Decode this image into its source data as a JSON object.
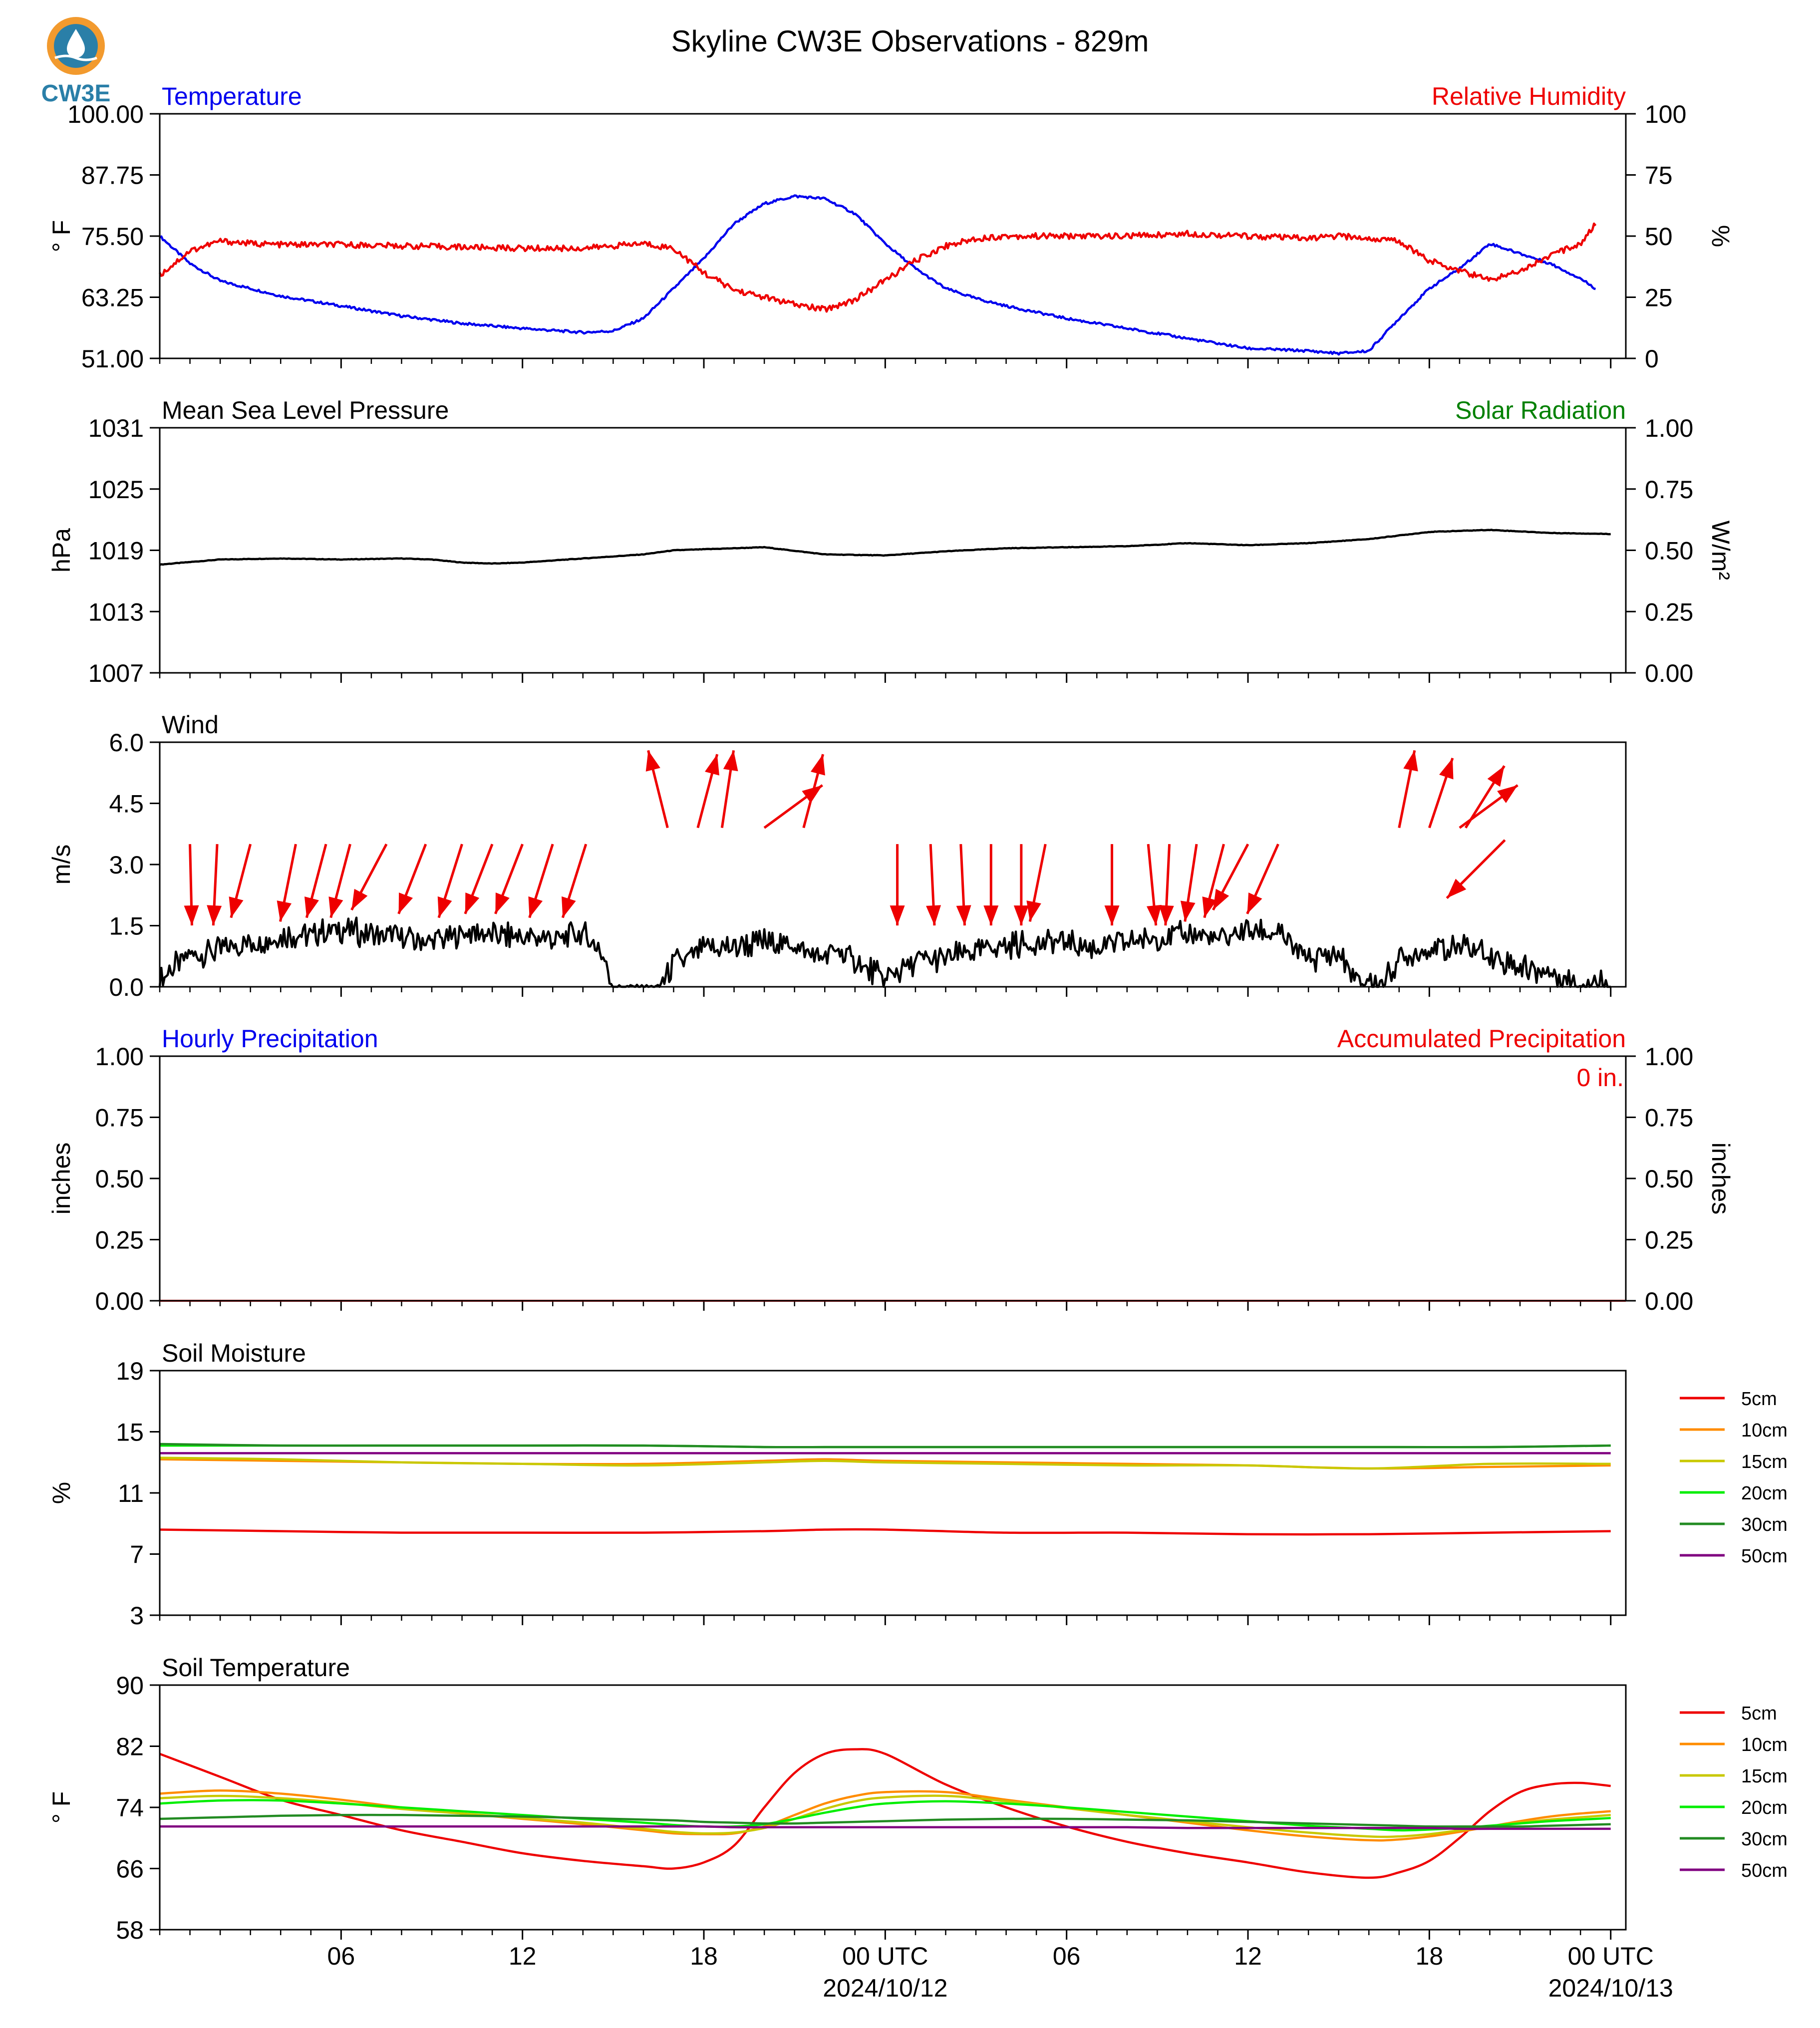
{
  "title": "Skyline CW3E Observations - 829m",
  "logo": {
    "text": "CW3E",
    "icon": "cw3e-logo-icon",
    "colors": [
      "#f29a2e",
      "#2a7fa8"
    ]
  },
  "time_axis": {
    "tick_labels": [
      "06",
      "12",
      "18",
      "00 UTC",
      "06",
      "12",
      "18",
      "00 UTC"
    ],
    "date_labels": [
      "2024/10/12",
      "2024/10/13"
    ]
  },
  "chart_data": [
    {
      "type": "line",
      "id": "temp_rh",
      "title_left": "Temperature",
      "title_right": "Relative Humidity",
      "title_left_color": "#0000ee",
      "title_right_color": "#ee0000",
      "ylabel_left": "° F",
      "ylabel_right": "%",
      "ylim_left": [
        51,
        100
      ],
      "ylim_right": [
        0,
        100
      ],
      "yticks_left": [
        "51.00",
        "63.25",
        "75.50",
        "87.75",
        "100.00"
      ],
      "yticks_right": [
        "0",
        "25",
        "50",
        "75",
        "100"
      ],
      "x_hours": [
        0,
        1,
        2,
        3,
        4,
        5,
        6,
        8,
        10,
        12,
        14,
        15,
        16,
        17,
        18,
        19,
        20,
        21,
        22,
        23,
        24,
        25,
        26,
        27,
        28,
        30,
        32,
        34,
        36,
        38,
        39,
        40,
        41,
        42,
        43,
        44,
        45,
        46,
        47,
        47.5
      ],
      "series": [
        {
          "name": "Temperature",
          "color": "#0000ee",
          "axis": "left",
          "values": [
            75.5,
            70,
            66.5,
            65,
            63.5,
            62.5,
            61.5,
            59.5,
            58,
            57,
            56.2,
            56.5,
            59,
            65,
            71,
            78,
            82,
            83.5,
            83,
            80,
            74,
            69,
            65,
            63,
            61.5,
            59,
            57,
            55,
            53,
            52.5,
            52,
            52.5,
            59,
            65,
            69,
            74,
            72,
            70,
            67,
            65
          ]
        },
        {
          "name": "Relative Humidity",
          "color": "#ee0000",
          "axis": "right",
          "values": [
            34,
            44,
            48,
            47,
            46.5,
            46.5,
            46.5,
            46,
            45.5,
            45,
            45,
            46,
            47,
            45,
            35,
            28,
            25,
            22,
            20,
            24,
            32,
            40,
            46,
            49,
            50,
            50,
            50,
            51,
            50,
            49,
            50,
            49,
            48,
            40,
            36,
            32,
            36,
            42,
            47,
            55
          ]
        }
      ]
    },
    {
      "type": "line",
      "id": "pressure",
      "title_left": "Mean Sea Level Pressure",
      "title_right": "Solar Radiation",
      "title_left_color": "#000000",
      "title_right_color": "#008000",
      "ylabel_left": "hPa",
      "ylabel_right": "W/m²",
      "ylim_left": [
        1007,
        1031
      ],
      "ylim_right": [
        0,
        1
      ],
      "yticks_left": [
        "1007",
        "1013",
        "1019",
        "1025",
        "1031"
      ],
      "yticks_right": [
        "0.00",
        "0.25",
        "0.50",
        "0.75",
        "1.00"
      ],
      "x_hours": [
        0,
        2,
        4,
        6,
        8,
        9,
        10,
        11,
        12,
        14,
        16,
        17,
        18,
        20,
        22,
        24,
        26,
        28,
        30,
        32,
        34,
        36,
        38,
        40,
        42,
        44,
        46,
        48
      ],
      "series": [
        {
          "name": "Mean Sea Level Pressure",
          "color": "#000000",
          "axis": "left",
          "values": [
            1017.6,
            1018.1,
            1018.2,
            1018.1,
            1018.2,
            1018.1,
            1017.8,
            1017.7,
            1017.8,
            1018.2,
            1018.6,
            1019.0,
            1019.1,
            1019.3,
            1018.6,
            1018.5,
            1018.9,
            1019.2,
            1019.3,
            1019.4,
            1019.7,
            1019.5,
            1019.7,
            1020.1,
            1020.8,
            1021.0,
            1020.7,
            1020.6
          ]
        }
      ]
    },
    {
      "type": "line",
      "id": "wind",
      "title_left": "Wind",
      "ylabel_left": "m/s",
      "ylim_left": [
        0,
        6
      ],
      "yticks_left": [
        "0.0",
        "1.5",
        "3.0",
        "4.5",
        "6.0"
      ],
      "x_hours": [
        0,
        1,
        2,
        3,
        4,
        5,
        6,
        7,
        8,
        9,
        10,
        11,
        12,
        13,
        14,
        14.5,
        15,
        16,
        16.5,
        17,
        18,
        19,
        20,
        21,
        22,
        22.5,
        23,
        24,
        25,
        26,
        27,
        28,
        29,
        30,
        31,
        32,
        33,
        34,
        35,
        36,
        37,
        37.5,
        38,
        39,
        39.5,
        40,
        40.5,
        41,
        42,
        43,
        44,
        45,
        46,
        47,
        48
      ],
      "series": [
        {
          "name": "Wind speed",
          "color": "#000000",
          "axis": "left",
          "values": [
            0.2,
            0.8,
            0.9,
            1.1,
            1.2,
            1.3,
            1.4,
            1.3,
            1.2,
            1.1,
            1.3,
            1.3,
            1.2,
            1.2,
            1.3,
            1.0,
            0,
            0,
            0,
            0.6,
            0.9,
            1.0,
            1.1,
            1.0,
            0.7,
            0.9,
            0.6,
            0.2,
            0.6,
            0.7,
            0.9,
            1.0,
            1.1,
            1.1,
            0.9,
            1.1,
            1.2,
            1.3,
            1.2,
            1.4,
            1.3,
            1.0,
            0.7,
            0.8,
            0.2,
            0.1,
            0.1,
            0.7,
            0.9,
            1.0,
            0.8,
            0.5,
            0.3,
            0.1,
            0.1
          ]
        }
      ],
      "wind_arrows": [
        {
          "x": 1.0,
          "y": 3.5,
          "u": 0.05,
          "v": -2.1
        },
        {
          "x": 1.9,
          "y": 3.5,
          "u": -0.1,
          "v": -2.1
        },
        {
          "x": 3.0,
          "y": 3.5,
          "u": -0.5,
          "v": -1.9
        },
        {
          "x": 4.5,
          "y": 3.5,
          "u": -0.4,
          "v": -2.0
        },
        {
          "x": 5.5,
          "y": 3.5,
          "u": -0.5,
          "v": -1.9
        },
        {
          "x": 6.3,
          "y": 3.5,
          "u": -0.5,
          "v": -1.9
        },
        {
          "x": 7.5,
          "y": 3.5,
          "u": -0.9,
          "v": -1.7
        },
        {
          "x": 8.8,
          "y": 3.5,
          "u": -0.7,
          "v": -1.8
        },
        {
          "x": 10.0,
          "y": 3.5,
          "u": -0.6,
          "v": -1.9
        },
        {
          "x": 11.0,
          "y": 3.5,
          "u": -0.7,
          "v": -1.8
        },
        {
          "x": 12.0,
          "y": 3.5,
          "u": -0.7,
          "v": -1.8
        },
        {
          "x": 13.0,
          "y": 3.5,
          "u": -0.6,
          "v": -1.9
        },
        {
          "x": 14.1,
          "y": 3.5,
          "u": -0.6,
          "v": -1.9
        },
        {
          "x": 16.8,
          "y": 3.9,
          "u": -0.5,
          "v": 2.0
        },
        {
          "x": 17.8,
          "y": 3.9,
          "u": 0.5,
          "v": 1.9
        },
        {
          "x": 18.6,
          "y": 3.9,
          "u": 0.3,
          "v": 2.0
        },
        {
          "x": 20.0,
          "y": 3.9,
          "u": 1.5,
          "v": 1.1
        },
        {
          "x": 21.3,
          "y": 3.9,
          "u": 0.5,
          "v": 1.9
        },
        {
          "x": 24.4,
          "y": 3.5,
          "u": 0.0,
          "v": -2.1
        },
        {
          "x": 25.5,
          "y": 3.5,
          "u": 0.1,
          "v": -2.1
        },
        {
          "x": 26.5,
          "y": 3.5,
          "u": 0.1,
          "v": -2.1
        },
        {
          "x": 27.5,
          "y": 3.5,
          "u": 0.0,
          "v": -2.1
        },
        {
          "x": 28.5,
          "y": 3.5,
          "u": 0.0,
          "v": -2.1
        },
        {
          "x": 29.3,
          "y": 3.5,
          "u": -0.4,
          "v": -2.0
        },
        {
          "x": 31.5,
          "y": 3.5,
          "u": 0.0,
          "v": -2.1
        },
        {
          "x": 32.7,
          "y": 3.5,
          "u": 0.2,
          "v": -2.1
        },
        {
          "x": 33.4,
          "y": 3.5,
          "u": -0.1,
          "v": -2.1
        },
        {
          "x": 34.3,
          "y": 3.5,
          "u": -0.3,
          "v": -2.0
        },
        {
          "x": 35.2,
          "y": 3.5,
          "u": -0.5,
          "v": -1.9
        },
        {
          "x": 36.0,
          "y": 3.5,
          "u": -0.9,
          "v": -1.7
        },
        {
          "x": 37.0,
          "y": 3.5,
          "u": -0.8,
          "v": -1.8
        },
        {
          "x": 41.0,
          "y": 3.9,
          "u": 0.4,
          "v": 2.0
        },
        {
          "x": 42.0,
          "y": 3.9,
          "u": 0.6,
          "v": 1.8
        },
        {
          "x": 43.2,
          "y": 3.9,
          "u": 1.0,
          "v": 1.6
        },
        {
          "x": 43.0,
          "y": 3.9,
          "u": 1.5,
          "v": 1.1
        },
        {
          "x": 44.5,
          "y": 3.6,
          "u": -1.5,
          "v": -1.5
        }
      ]
    },
    {
      "type": "bar",
      "id": "precip",
      "title_left": "Hourly Precipitation",
      "title_right": "Accumulated Precipitation",
      "title_left_color": "#0000ee",
      "title_right_color": "#ee0000",
      "annotation": "0 in.",
      "ylabel_left": "inches",
      "ylabel_right": "inches",
      "ylim_left": [
        0,
        1
      ],
      "ylim_right": [
        0,
        1
      ],
      "yticks_left": [
        "0.00",
        "0.25",
        "0.50",
        "0.75",
        "1.00"
      ],
      "yticks_right": [
        "0.00",
        "0.25",
        "0.50",
        "0.75",
        "1.00"
      ],
      "x_hours": [
        0,
        48
      ],
      "series": [
        {
          "name": "Accumulated Precipitation",
          "color": "#ee0000",
          "axis": "left",
          "values": [
            0,
            0
          ]
        }
      ]
    },
    {
      "type": "line",
      "id": "soil_moisture",
      "title_left": "Soil Moisture",
      "ylabel_left": "%",
      "ylim_left": [
        3,
        19
      ],
      "yticks_left": [
        "3",
        "7",
        "11",
        "15",
        "19"
      ],
      "x_hours": [
        0,
        4,
        8,
        12,
        16,
        20,
        22,
        24,
        28,
        32,
        36,
        40,
        44,
        48
      ],
      "series": [
        {
          "name": "5cm",
          "color": "#ee0000",
          "values": [
            8.6,
            8.5,
            8.4,
            8.4,
            8.4,
            8.5,
            8.6,
            8.6,
            8.4,
            8.4,
            8.3,
            8.3,
            8.4,
            8.5
          ]
        },
        {
          "name": "10cm",
          "color": "#ff8c00",
          "values": [
            13.2,
            13.1,
            13.0,
            12.9,
            12.9,
            13.1,
            13.2,
            13.1,
            13.0,
            12.9,
            12.8,
            12.6,
            12.7,
            12.8
          ]
        },
        {
          "name": "15cm",
          "color": "#c8c800",
          "values": [
            13.3,
            13.2,
            13.0,
            12.9,
            12.8,
            13.0,
            13.1,
            13.0,
            12.9,
            12.8,
            12.8,
            12.6,
            12.9,
            12.9
          ]
        },
        {
          "name": "20cm",
          "color": "#00ee00",
          "values": [
            14.1,
            14.1,
            14.1,
            14.1,
            14.1,
            14.0,
            14.0,
            14.0,
            14.0,
            14.0,
            14.0,
            14.0,
            14.0,
            14.1
          ]
        },
        {
          "name": "30cm",
          "color": "#228b22",
          "values": [
            14.2,
            14.1,
            14.1,
            14.1,
            14.1,
            14.0,
            14.0,
            14.0,
            14.0,
            14.0,
            14.0,
            14.0,
            14.0,
            14.1
          ]
        },
        {
          "name": "50cm",
          "color": "#800080",
          "values": [
            13.6,
            13.6,
            13.6,
            13.6,
            13.6,
            13.6,
            13.6,
            13.6,
            13.6,
            13.6,
            13.6,
            13.6,
            13.6,
            13.6
          ]
        }
      ]
    },
    {
      "type": "line",
      "id": "soil_temp",
      "title_left": "Soil Temperature",
      "ylabel_left": "° F",
      "ylim_left": [
        58,
        90
      ],
      "yticks_left": [
        "58",
        "66",
        "74",
        "82",
        "90"
      ],
      "x_hours": [
        0,
        2,
        4,
        6,
        8,
        10,
        12,
        14,
        16,
        17,
        18,
        19,
        20,
        21,
        22,
        23,
        24,
        26,
        28,
        30,
        32,
        34,
        36,
        38,
        40,
        41,
        42,
        43,
        44,
        45,
        46,
        47,
        48
      ],
      "series": [
        {
          "name": "5cm",
          "color": "#ee0000",
          "values": [
            81,
            78,
            75,
            73,
            71,
            69.5,
            68,
            67,
            66.3,
            66,
            66.8,
            69,
            74,
            78.5,
            81,
            81.6,
            81,
            77,
            74,
            71.5,
            69.5,
            68,
            66.8,
            65.5,
            64.8,
            65.5,
            67,
            70,
            73.5,
            76,
            77,
            77.2,
            76.8
          ]
        },
        {
          "name": "10cm",
          "color": "#ff8c00",
          "values": [
            75.8,
            76.2,
            75.8,
            75.0,
            74.0,
            73.2,
            72.5,
            71.8,
            71.0,
            70.6,
            70.5,
            70.6,
            71.5,
            73.0,
            74.5,
            75.5,
            76.0,
            76.0,
            75.0,
            74.0,
            73.0,
            72.0,
            71.0,
            70.2,
            69.7,
            69.8,
            70.2,
            70.8,
            71.5,
            72.2,
            72.8,
            73.2,
            73.5
          ]
        },
        {
          "name": "15cm",
          "color": "#c8c800",
          "values": [
            75.2,
            75.5,
            75.2,
            74.6,
            73.8,
            73.2,
            72.6,
            72.0,
            71.2,
            70.8,
            70.6,
            70.7,
            71.3,
            72.5,
            73.8,
            74.8,
            75.3,
            75.5,
            74.8,
            73.9,
            73.0,
            72.2,
            71.4,
            70.7,
            70.2,
            70.2,
            70.5,
            71.0,
            71.5,
            72.0,
            72.4,
            72.7,
            73.0
          ]
        },
        {
          "name": "20cm",
          "color": "#00ee00",
          "values": [
            74.5,
            74.9,
            74.9,
            74.5,
            74.0,
            73.5,
            73.0,
            72.5,
            72.0,
            71.7,
            71.5,
            71.5,
            71.8,
            72.5,
            73.3,
            74.0,
            74.5,
            74.8,
            74.5,
            74.0,
            73.4,
            72.8,
            72.2,
            71.6,
            71.2,
            71.0,
            71.1,
            71.3,
            71.6,
            71.9,
            72.2,
            72.4,
            72.6
          ]
        },
        {
          "name": "30cm",
          "color": "#228b22",
          "values": [
            72.5,
            72.7,
            72.9,
            73.0,
            73.0,
            72.9,
            72.8,
            72.6,
            72.4,
            72.3,
            72.1,
            72.0,
            71.9,
            71.9,
            72.0,
            72.1,
            72.2,
            72.4,
            72.5,
            72.5,
            72.4,
            72.3,
            72.1,
            71.9,
            71.7,
            71.6,
            71.5,
            71.5,
            71.5,
            71.5,
            71.6,
            71.7,
            71.8
          ]
        },
        {
          "name": "50cm",
          "color": "#800080",
          "values": [
            71.5,
            71.5,
            71.5,
            71.5,
            71.5,
            71.5,
            71.5,
            71.5,
            71.5,
            71.5,
            71.5,
            71.4,
            71.4,
            71.4,
            71.4,
            71.4,
            71.4,
            71.4,
            71.4,
            71.4,
            71.4,
            71.3,
            71.3,
            71.3,
            71.3,
            71.3,
            71.3,
            71.2,
            71.2,
            71.2,
            71.2,
            71.2,
            71.2
          ]
        }
      ]
    }
  ]
}
